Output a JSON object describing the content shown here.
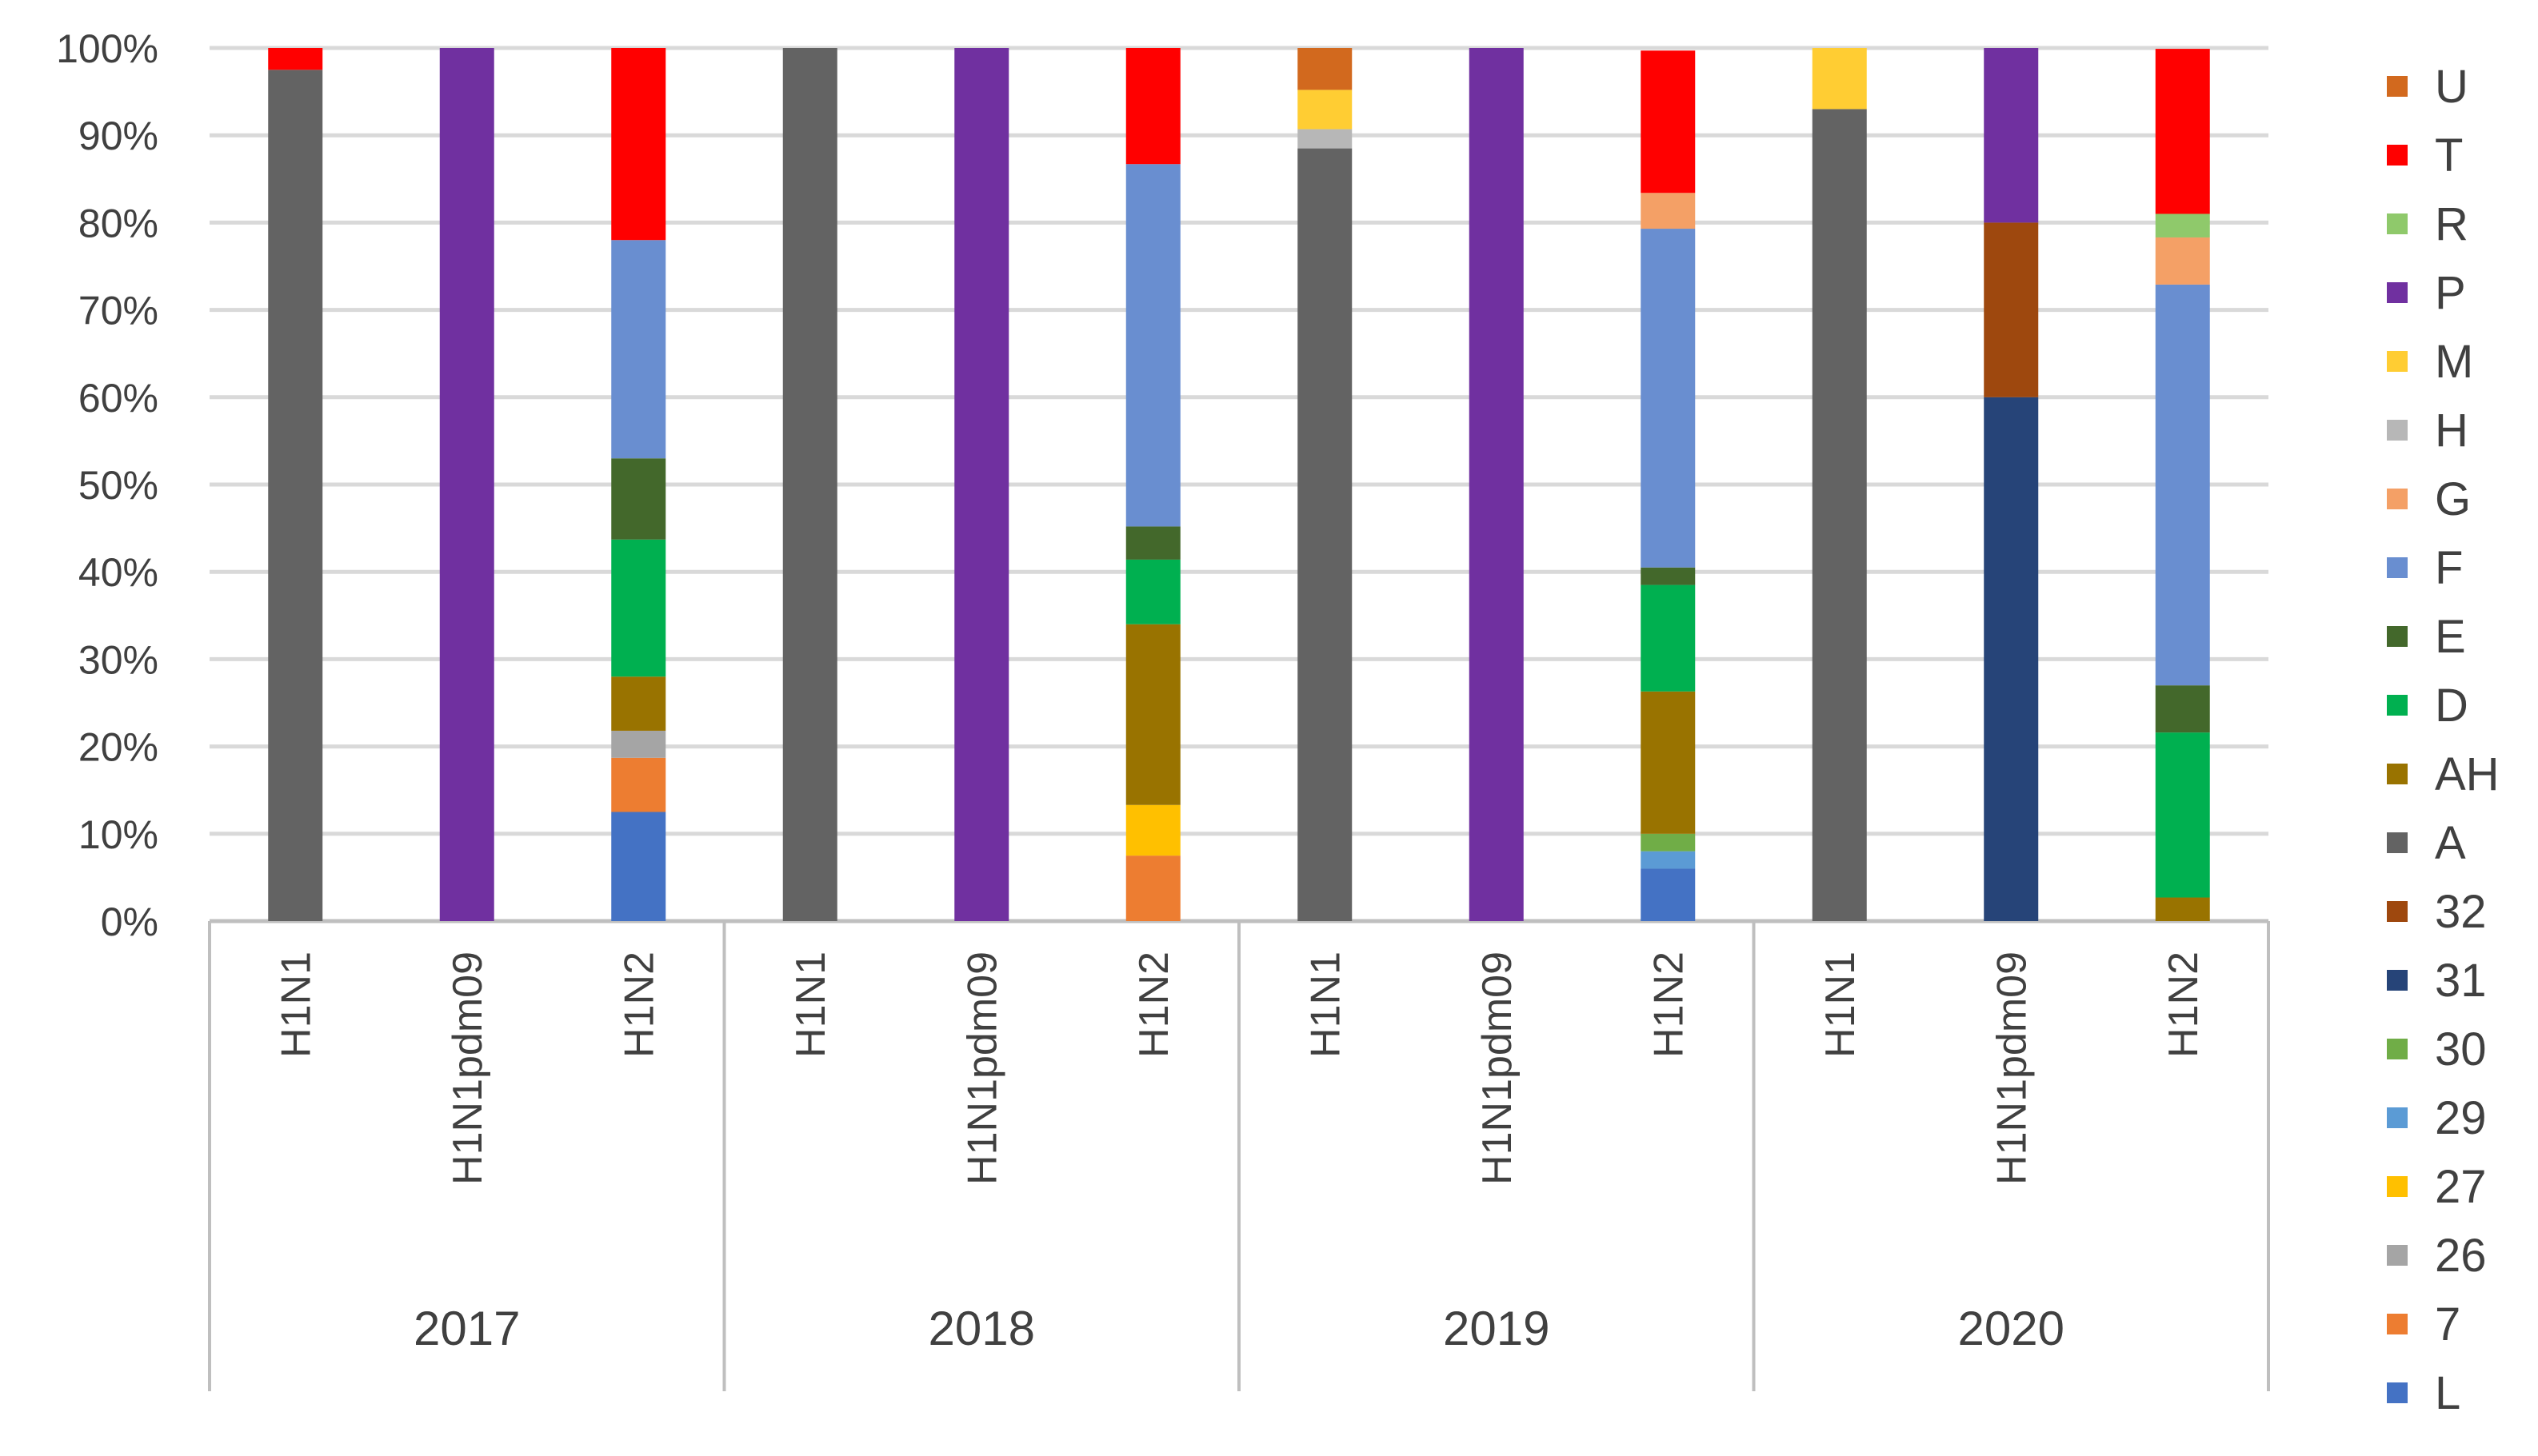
{
  "chart_data": {
    "type": "bar",
    "stacked": true,
    "percent": true,
    "title": "",
    "xlabel": "",
    "ylabel": "",
    "ylim": [
      0,
      100
    ],
    "yticks": [
      "0%",
      "10%",
      "20%",
      "30%",
      "40%",
      "50%",
      "60%",
      "70%",
      "80%",
      "90%",
      "100%"
    ],
    "grid": true,
    "legend_position": "right",
    "groups": [
      "2017",
      "2018",
      "2019",
      "2020"
    ],
    "subcategories": [
      "H1N1",
      "H1N1pdm09",
      "H1N2"
    ],
    "categories": [
      "2017 H1N1",
      "2017 H1N1pdm09",
      "2017 H1N2",
      "2018 H1N1",
      "2018 H1N1pdm09",
      "2018 H1N2",
      "2019 H1N1",
      "2019 H1N1pdm09",
      "2019 H1N2",
      "2020 H1N1",
      "2020 H1N1pdm09",
      "2020 H1N2"
    ],
    "series": [
      {
        "name": "L",
        "color": "#4472C4",
        "values": [
          0,
          0,
          12.5,
          0,
          0,
          0,
          0,
          0,
          6,
          0,
          0,
          0
        ]
      },
      {
        "name": "7",
        "color": "#ED7D31",
        "values": [
          0,
          0,
          6.2,
          0,
          0,
          7.5,
          0,
          0,
          0,
          0,
          0,
          0
        ]
      },
      {
        "name": "26",
        "color": "#A5A5A5",
        "values": [
          0,
          0,
          3.1,
          0,
          0,
          0,
          0,
          0,
          0,
          0,
          0,
          0
        ]
      },
      {
        "name": "27",
        "color": "#FFC000",
        "values": [
          0,
          0,
          0,
          0,
          0,
          5.8,
          0,
          0,
          0,
          0,
          0,
          0
        ]
      },
      {
        "name": "29",
        "color": "#5B9BD5",
        "values": [
          0,
          0,
          0,
          0,
          0,
          0,
          0,
          0,
          2,
          0,
          0,
          0
        ]
      },
      {
        "name": "30",
        "color": "#70AD47",
        "values": [
          0,
          0,
          0,
          0,
          0,
          0,
          0,
          0,
          2,
          0,
          0,
          0
        ]
      },
      {
        "name": "31",
        "color": "#264478",
        "values": [
          0,
          0,
          0,
          0,
          0,
          0,
          0,
          0,
          0,
          0,
          60,
          0
        ]
      },
      {
        "name": "32",
        "color": "#9E480E",
        "values": [
          0,
          0,
          0,
          0,
          0,
          0,
          0,
          0,
          0,
          0,
          20,
          0
        ]
      },
      {
        "name": "A",
        "color": "#636363",
        "values": [
          97.5,
          0,
          0,
          100,
          0,
          0,
          88.5,
          0,
          0,
          93,
          0,
          0
        ]
      },
      {
        "name": "AH",
        "color": "#997300",
        "values": [
          0,
          0,
          6.2,
          0,
          0,
          20.7,
          0,
          0,
          16.3,
          0,
          0,
          2.7
        ]
      },
      {
        "name": "D",
        "color": "#00B050",
        "values": [
          0,
          0,
          15.7,
          0,
          0,
          7.4,
          0,
          0,
          12.2,
          0,
          0,
          18.9
        ]
      },
      {
        "name": "E",
        "color": "#43682B",
        "values": [
          0,
          0,
          9.3,
          0,
          0,
          3.8,
          0,
          0,
          2,
          0,
          0,
          5.4
        ]
      },
      {
        "name": "F",
        "color": "#698ED0",
        "values": [
          0,
          0,
          25,
          0,
          0,
          41.5,
          0,
          0,
          38.8,
          0,
          0,
          45.9
        ]
      },
      {
        "name": "G",
        "color": "#F4A066",
        "values": [
          0,
          0,
          0,
          0,
          0,
          0,
          0,
          0,
          4.1,
          0,
          0,
          5.4
        ]
      },
      {
        "name": "H",
        "color": "#B7B7B7",
        "values": [
          0,
          0,
          0,
          0,
          0,
          0,
          2.2,
          0,
          0,
          0,
          0,
          0
        ]
      },
      {
        "name": "M",
        "color": "#FFCD33",
        "values": [
          0,
          0,
          0,
          0,
          0,
          0,
          4.5,
          0,
          0,
          7,
          0,
          0
        ]
      },
      {
        "name": "P",
        "color": "#7030A0",
        "values": [
          0,
          100,
          0,
          0,
          100,
          0,
          0,
          100,
          0,
          0,
          20,
          0
        ]
      },
      {
        "name": "R",
        "color": "#8FC96B",
        "values": [
          0,
          0,
          0,
          0,
          0,
          0,
          0,
          0,
          0,
          0,
          0,
          2.7
        ]
      },
      {
        "name": "T",
        "color": "#FF0000",
        "values": [
          2.5,
          0,
          22,
          0,
          0,
          13.3,
          0,
          0,
          16.3,
          0,
          0,
          18.9
        ]
      },
      {
        "name": "U",
        "color": "#D2691E",
        "values": [
          0,
          0,
          0,
          0,
          0,
          0,
          4.8,
          0,
          0,
          0,
          0,
          0
        ]
      }
    ],
    "legend_order": [
      "U",
      "T",
      "R",
      "P",
      "M",
      "H",
      "G",
      "F",
      "E",
      "D",
      "AH",
      "A",
      "32",
      "31",
      "30",
      "29",
      "27",
      "26",
      "7",
      "L"
    ],
    "colors": {
      "grid": "#D9D9D9",
      "axis": "#BFBFBF",
      "text": "#404040"
    }
  }
}
